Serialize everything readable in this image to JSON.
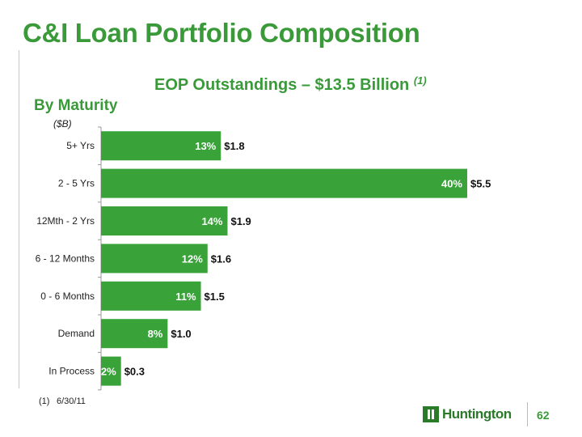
{
  "slide": {
    "title": "C&I Loan Portfolio Composition",
    "subtitle_main": "EOP Outstandings – $13.5 Billion",
    "subtitle_note": "(1)",
    "section_heading": "By Maturity",
    "units": "($B)",
    "footnote_number": "(1)",
    "footnote_text": "6/30/11",
    "page_number": "62",
    "logo_text": "Huntington"
  },
  "colors": {
    "bar": "#39a339",
    "title": "#3a9a3a",
    "axis": "#999999"
  },
  "chart_data": {
    "type": "bar",
    "orientation": "horizontal",
    "categories": [
      "5+ Yrs",
      "2 - 5 Yrs",
      "12Mth - 2 Yrs",
      "6 - 12 Months",
      "0 - 6 Months",
      "Demand",
      "In Process"
    ],
    "series": [
      {
        "values": [
          1.8,
          5.5,
          1.9,
          1.6,
          1.5,
          1.0,
          0.3
        ],
        "value_labels": [
          "$1.8",
          "$5.5",
          "$1.9",
          "$1.6",
          "$1.5",
          "$1.0",
          "$0.3"
        ],
        "percent_labels": [
          "13%",
          "40%",
          "14%",
          "12%",
          "11%",
          "8%",
          "2%"
        ]
      }
    ],
    "xlim": [
      0,
      6.0
    ],
    "grid": false,
    "legend": false
  }
}
